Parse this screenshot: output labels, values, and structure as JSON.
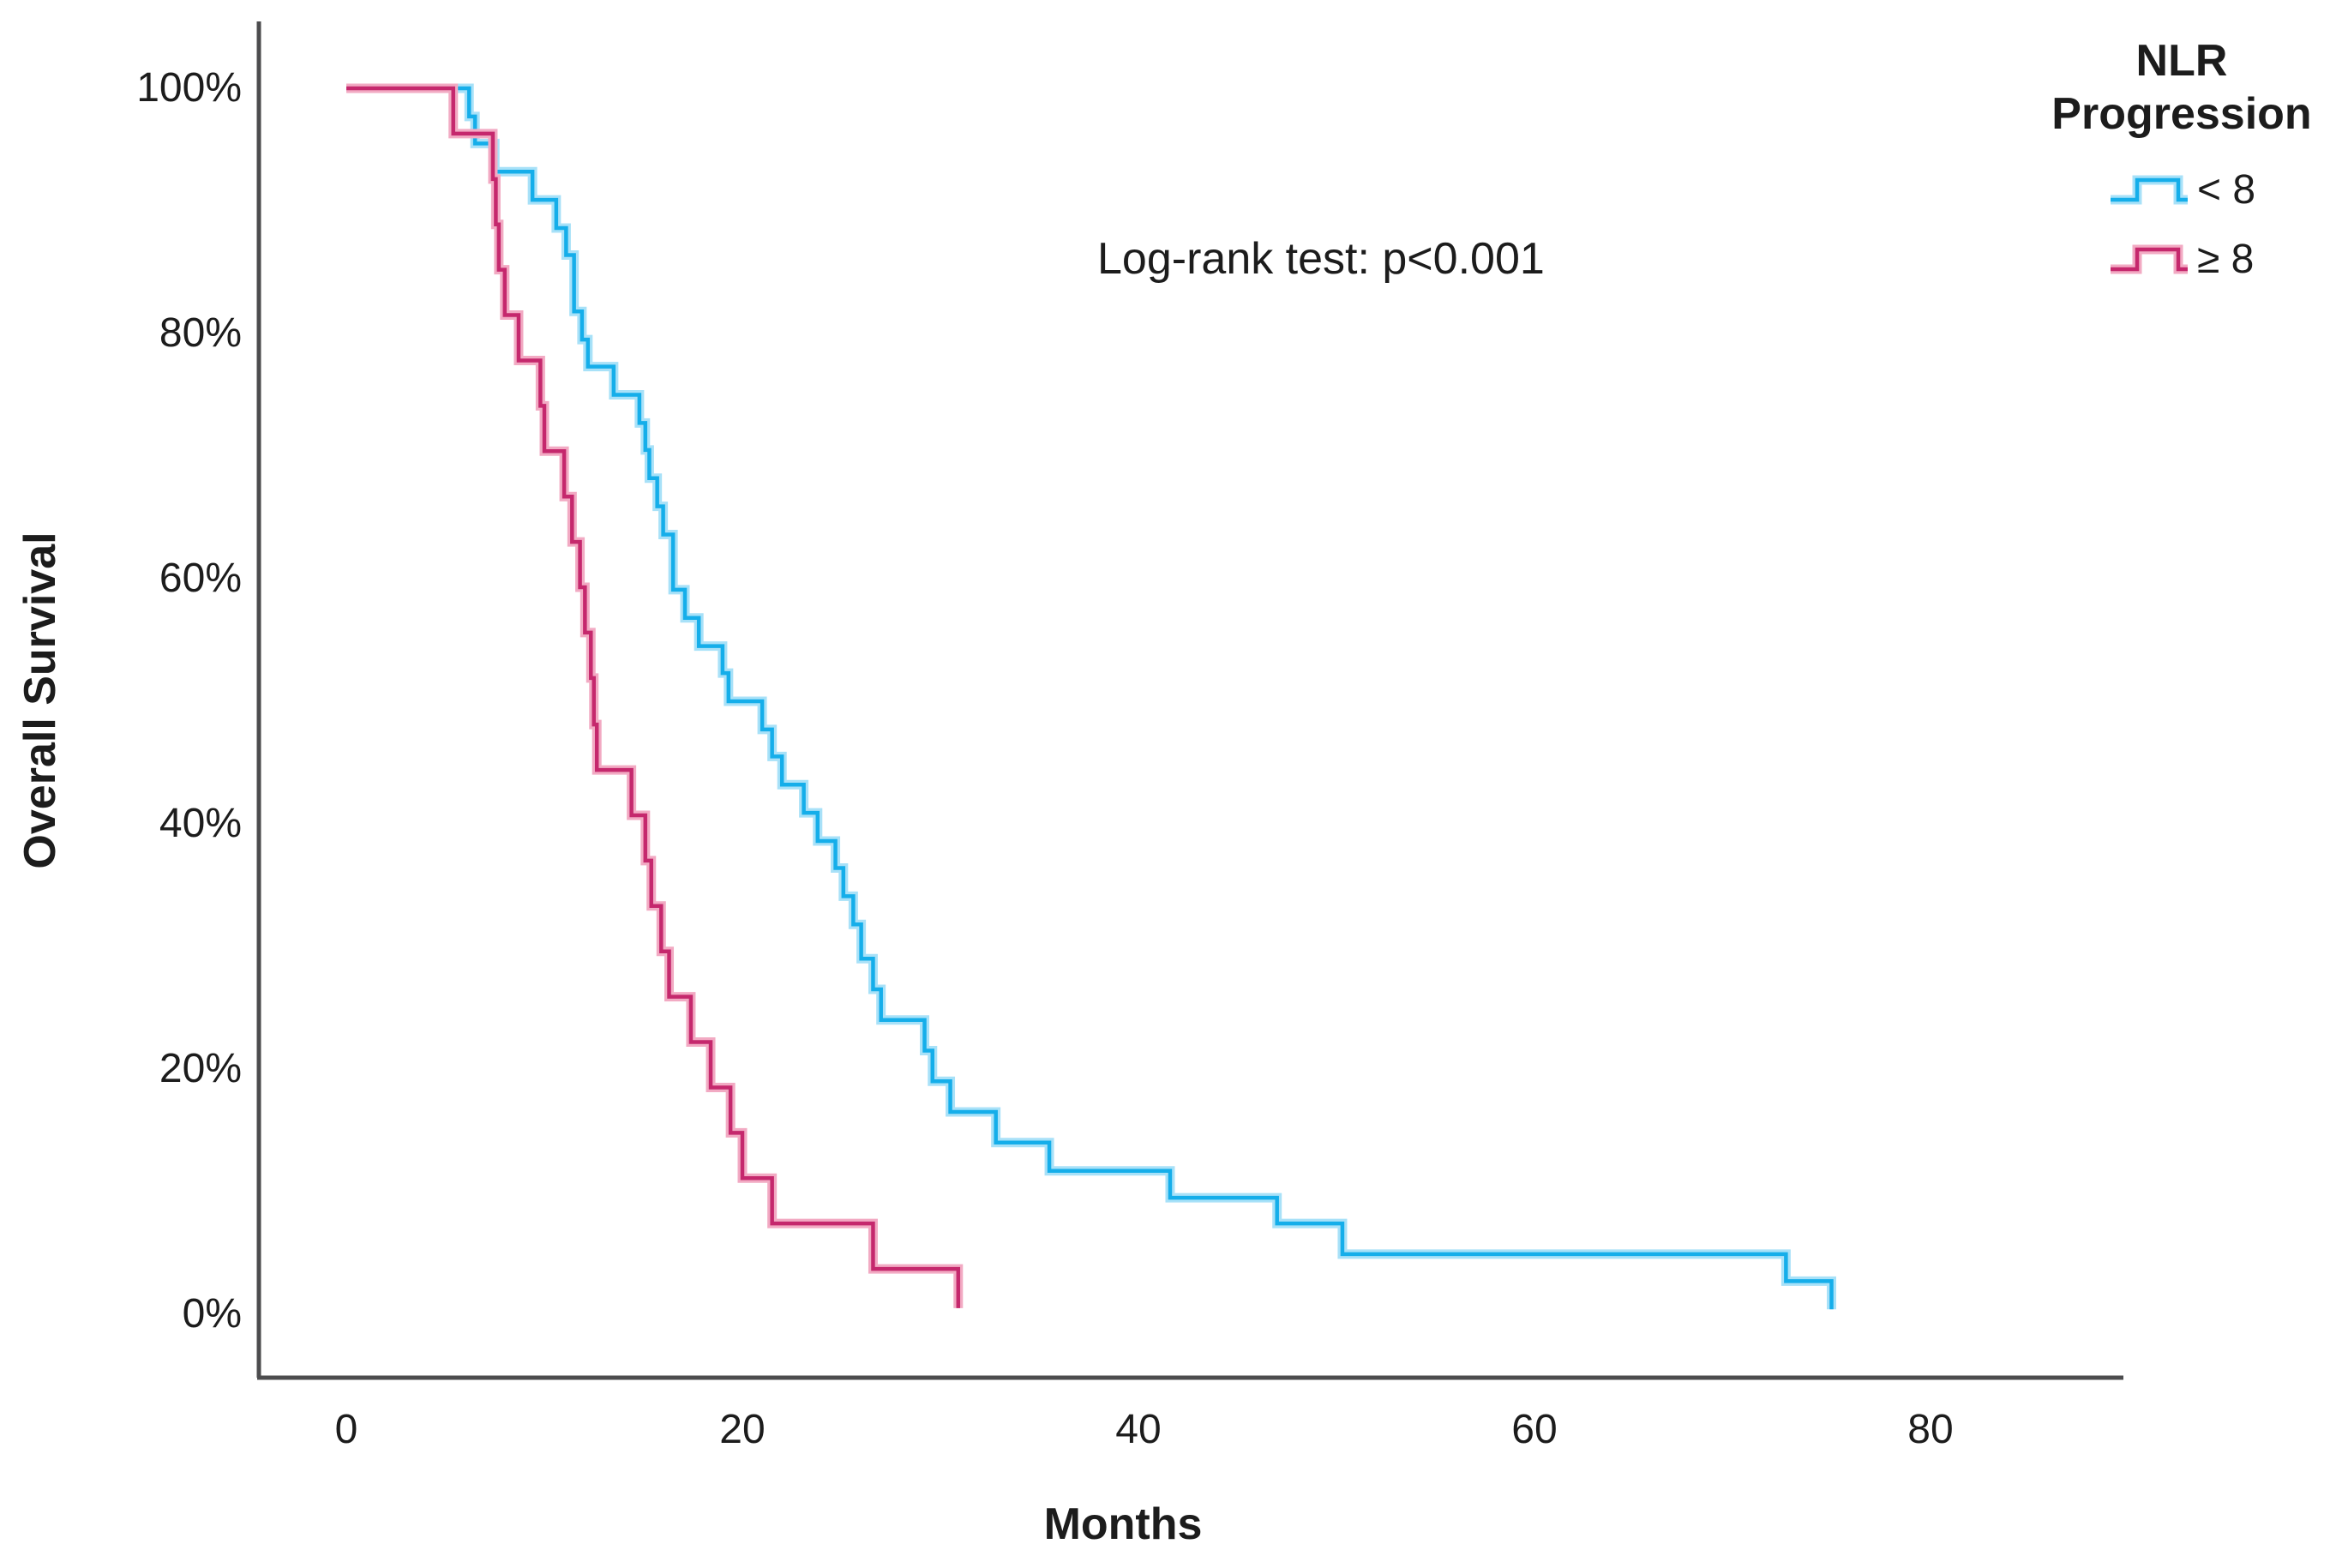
{
  "chart": {
    "annotation": "Log-rank test: p<0.001",
    "x_label": "Months",
    "y_label": "Overall Survival",
    "legend": {
      "title_line1": "NLR",
      "title_line2": "Progression",
      "entries": [
        {
          "label": "< 8"
        },
        {
          "label": "≥ 8"
        }
      ]
    }
  },
  "colors": {
    "blue_main": "#15aeea",
    "blue_halo": "#a8e1f8",
    "pink_main": "#c5286d",
    "pink_halo": "#f2aac3",
    "axis_line": "#4c4c4e",
    "text": "#1c1c1c"
  },
  "chart_data": {
    "type": "line",
    "subtype": "kaplan-meier-step",
    "title": "",
    "xlabel": "Months",
    "ylabel": "Overall Survival",
    "annotation": "Log-rank test: p<0.001",
    "grid": false,
    "legend_position": "top-right",
    "legend_title": "NLR Progression",
    "xlim": [
      0,
      89
    ],
    "ylim": [
      0,
      100
    ],
    "x_ticks": [
      {
        "label": "0",
        "value": 0
      },
      {
        "label": "20",
        "value": 20
      },
      {
        "label": "40",
        "value": 40
      },
      {
        "label": "60",
        "value": 60
      },
      {
        "label": "80",
        "value": 80
      }
    ],
    "y_ticks": [
      {
        "label": "100%",
        "value": 100
      },
      {
        "label": "80%",
        "value": 80
      },
      {
        "label": "60%",
        "value": 60
      },
      {
        "label": "40%",
        "value": 40
      },
      {
        "label": "20%",
        "value": 20
      },
      {
        "label": "0%",
        "value": 0
      }
    ],
    "series": [
      {
        "name": "< 8",
        "unit_x": "months",
        "unit_y": "percent overall survival",
        "color": "#15aeea",
        "halo": "#a8e1f8",
        "points": [
          [
            0,
            100
          ],
          [
            6.2,
            97.7
          ],
          [
            6.5,
            95.5
          ],
          [
            7.5,
            93.2
          ],
          [
            9.4,
            90.9
          ],
          [
            10.6,
            88.6
          ],
          [
            11.1,
            86.4
          ],
          [
            11.5,
            81.8
          ],
          [
            11.9,
            79.5
          ],
          [
            12.2,
            77.3
          ],
          [
            13.5,
            75.0
          ],
          [
            14.8,
            72.7
          ],
          [
            15.1,
            70.5
          ],
          [
            15.3,
            68.2
          ],
          [
            15.7,
            65.9
          ],
          [
            16.0,
            63.6
          ],
          [
            16.5,
            59.1
          ],
          [
            17.1,
            56.8
          ],
          [
            17.8,
            54.5
          ],
          [
            19.0,
            52.3
          ],
          [
            19.3,
            50.0
          ],
          [
            21.0,
            47.7
          ],
          [
            21.5,
            45.5
          ],
          [
            22.0,
            43.2
          ],
          [
            23.1,
            40.9
          ],
          [
            23.8,
            38.6
          ],
          [
            24.7,
            36.4
          ],
          [
            25.1,
            34.1
          ],
          [
            25.6,
            31.8
          ],
          [
            26.0,
            29.0
          ],
          [
            26.6,
            26.5
          ],
          [
            27.0,
            24.0
          ],
          [
            29.2,
            21.5
          ],
          [
            29.6,
            19.0
          ],
          [
            30.5,
            16.5
          ],
          [
            32.8,
            14.0
          ],
          [
            35.5,
            11.7
          ],
          [
            41.6,
            9.5
          ],
          [
            47.0,
            7.4
          ],
          [
            50.3,
            4.9
          ],
          [
            72.7,
            2.7
          ],
          [
            75.0,
            0.4
          ]
        ]
      },
      {
        "name": "≥ 8",
        "unit_x": "months",
        "unit_y": "percent overall survival",
        "color": "#c5286d",
        "halo": "#f2aac3",
        "points": [
          [
            0,
            100
          ],
          [
            5.4,
            96.3
          ],
          [
            7.4,
            92.6
          ],
          [
            7.55,
            88.9
          ],
          [
            7.7,
            85.2
          ],
          [
            8.0,
            81.5
          ],
          [
            8.7,
            77.8
          ],
          [
            9.8,
            74.1
          ],
          [
            10.0,
            70.4
          ],
          [
            11.0,
            66.7
          ],
          [
            11.4,
            63.0
          ],
          [
            11.8,
            59.3
          ],
          [
            12.05,
            55.6
          ],
          [
            12.35,
            51.9
          ],
          [
            12.5,
            48.1
          ],
          [
            12.65,
            44.4
          ],
          [
            14.4,
            40.7
          ],
          [
            15.1,
            37.0
          ],
          [
            15.4,
            33.3
          ],
          [
            15.9,
            29.6
          ],
          [
            16.3,
            25.9
          ],
          [
            17.4,
            22.2
          ],
          [
            18.4,
            18.5
          ],
          [
            19.4,
            14.8
          ],
          [
            20.0,
            11.1
          ],
          [
            21.5,
            7.4
          ],
          [
            26.6,
            3.7
          ],
          [
            30.9,
            0.5
          ]
        ]
      }
    ]
  }
}
